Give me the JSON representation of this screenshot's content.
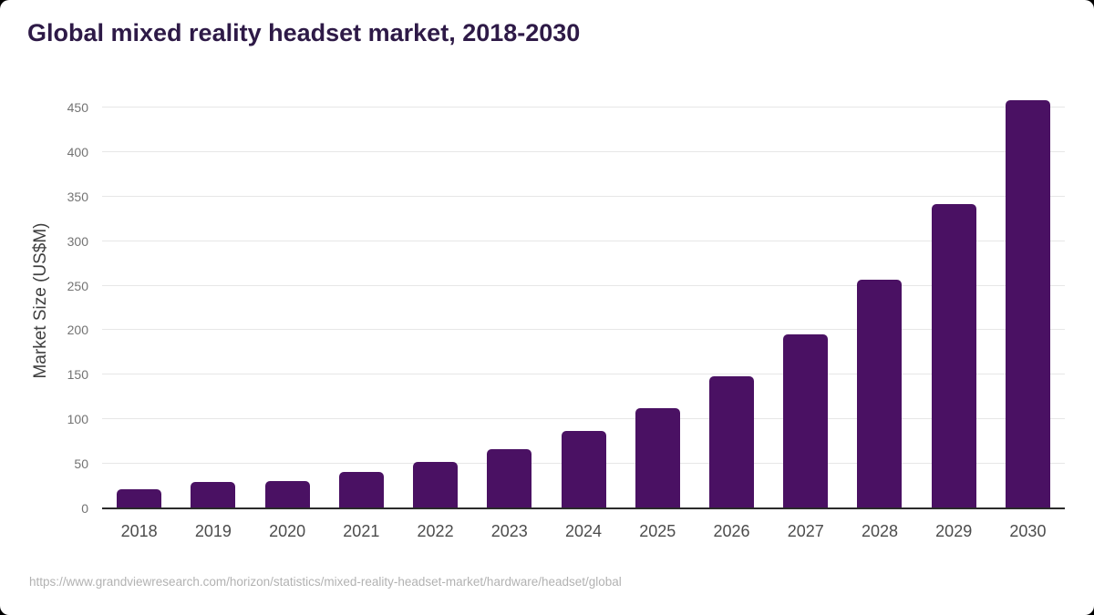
{
  "title": "Global mixed reality headset market, 2018-2030",
  "source": {
    "url": "https://www.grandviewresearch.com/horizon/statistics/mixed-reality-headset-market/hardware/headset/global"
  },
  "colors": {
    "background": "#ffffff",
    "bar": "#4a1163",
    "title": "#2e1a47",
    "grid": "#e7e7e7",
    "axis_line": "#2b2b2b",
    "y_tick_label": "#737373",
    "x_tick_label": "#4c4c4c",
    "axis_title": "#3f3f3f",
    "footer_text": "#b2b2b2"
  },
  "chart_data": {
    "type": "bar",
    "title": "Global mixed reality headset market, 2018-2030",
    "categories": [
      "2018",
      "2019",
      "2020",
      "2021",
      "2022",
      "2023",
      "2024",
      "2025",
      "2026",
      "2027",
      "2028",
      "2029",
      "2030"
    ],
    "values": [
      21,
      30,
      31,
      41,
      52,
      67,
      87,
      113,
      148,
      195,
      257,
      342,
      458
    ],
    "xlabel": "",
    "ylabel": "Market Size (US$M)",
    "ylim": [
      0,
      450
    ],
    "yticks": [
      0,
      50,
      100,
      150,
      200,
      250,
      300,
      350,
      400,
      450
    ],
    "grid": "horizontal",
    "legend": false,
    "bar_corner_radius": "rounded-top"
  }
}
